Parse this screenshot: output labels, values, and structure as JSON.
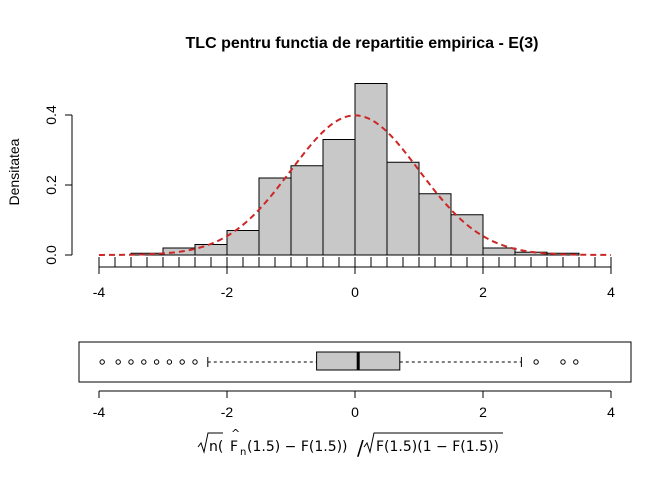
{
  "chart_data": [
    {
      "type": "bar",
      "title": "TLC pentru functia de repartitie empirica - E(3)",
      "ylabel": "Densitatea",
      "xlim": [
        -4,
        4
      ],
      "ylim": [
        0,
        0.5
      ],
      "x_ticks": [
        -4,
        -2,
        0,
        2,
        4
      ],
      "y_ticks": [
        0.0,
        0.2,
        0.4
      ],
      "x_tick_labels": [
        "-4",
        "-2",
        "0",
        "2",
        "4"
      ],
      "y_tick_labels": [
        "0.0",
        "0.2",
        "0.4"
      ],
      "bin_width": 0.5,
      "bins": [
        {
          "left": -3.5,
          "right": -3.0,
          "value": 0.005
        },
        {
          "left": -3.0,
          "right": -2.5,
          "value": 0.02
        },
        {
          "left": -2.5,
          "right": -2.0,
          "value": 0.03
        },
        {
          "left": -2.0,
          "right": -1.5,
          "value": 0.07
        },
        {
          "left": -1.5,
          "right": -1.0,
          "value": 0.22
        },
        {
          "left": -1.0,
          "right": -0.5,
          "value": 0.255
        },
        {
          "left": -0.5,
          "right": 0.0,
          "value": 0.33
        },
        {
          "left": 0.0,
          "right": 0.5,
          "value": 0.49
        },
        {
          "left": 0.5,
          "right": 1.0,
          "value": 0.265
        },
        {
          "left": 1.0,
          "right": 1.5,
          "value": 0.175
        },
        {
          "left": 1.5,
          "right": 2.0,
          "value": 0.115
        },
        {
          "left": 2.0,
          "right": 2.5,
          "value": 0.02
        },
        {
          "left": 2.5,
          "right": 3.0,
          "value": 0.008
        },
        {
          "left": 3.0,
          "right": 3.5,
          "value": 0.005
        }
      ],
      "density_curve": {
        "distribution": "normal",
        "mean": 0,
        "sd": 1,
        "color": "#CD2626",
        "style": "dashed"
      },
      "bar_fill": "#C8C8C8",
      "rug": true
    },
    {
      "type": "boxplot",
      "orientation": "horizontal",
      "xlim": [
        -4,
        4
      ],
      "x_ticks": [
        -4,
        -2,
        0,
        2,
        4
      ],
      "x_tick_labels": [
        "-4",
        "-2",
        "0",
        "2",
        "4"
      ],
      "whisker_low": -2.3,
      "q1": -0.6,
      "median": 0.05,
      "q3": 0.7,
      "whisker_high": 2.6,
      "outliers": [
        -3.95,
        -3.7,
        -3.5,
        -3.3,
        -3.1,
        -2.9,
        -2.7,
        -2.5,
        2.83,
        3.25,
        3.45
      ],
      "box_fill": "#C8C8C8"
    }
  ]
}
